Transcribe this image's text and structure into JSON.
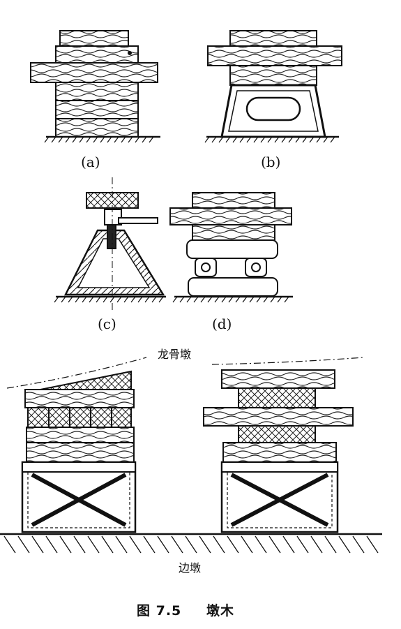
{
  "labels": {
    "a": "(a)",
    "b": "(b)",
    "c": "(c)",
    "d": "(d)"
  },
  "annotations": {
    "keel_pier": "龙骨墩",
    "side_pier": "边墩"
  },
  "caption": {
    "number": "图 7.5",
    "title": "墩木"
  }
}
